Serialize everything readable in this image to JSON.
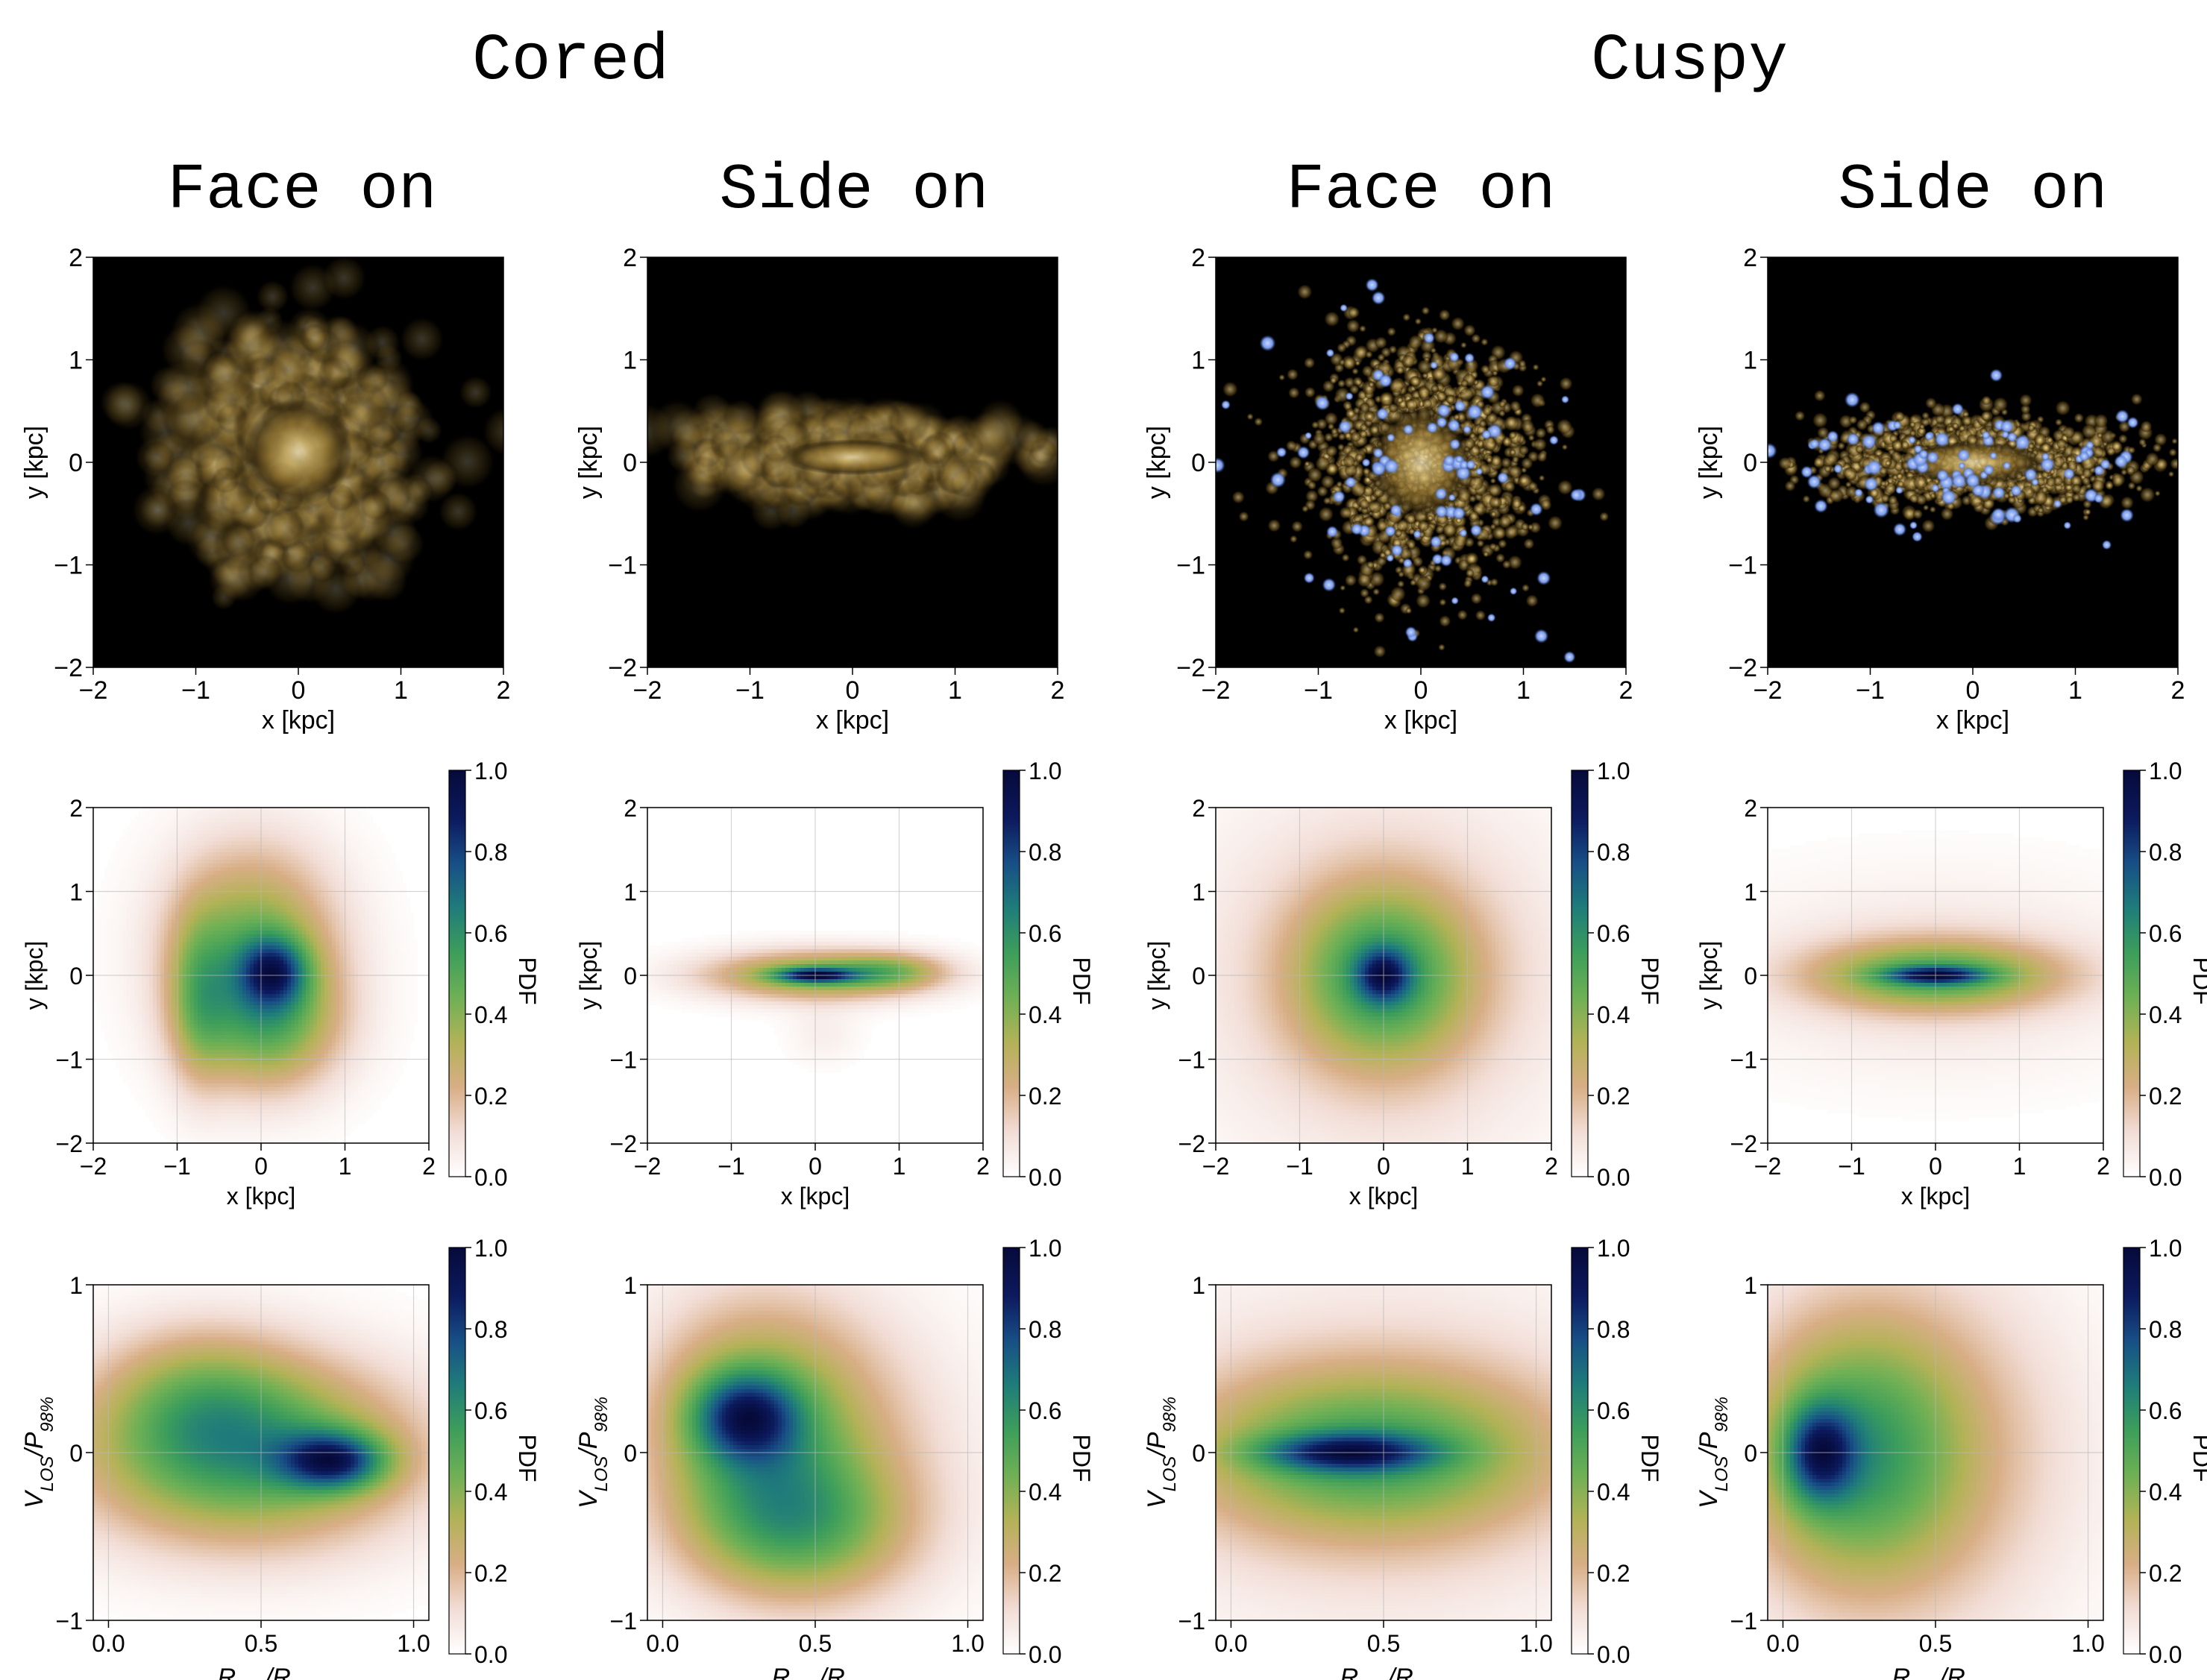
{
  "headers": {
    "cored": "Cored",
    "cuspy": "Cuspy",
    "face_on": "Face on",
    "side_on": "Side on"
  },
  "colors": {
    "pdf_cmap": [
      "#ffffff",
      "#f2ddd6",
      "#d8ae86",
      "#b3b257",
      "#6fb055",
      "#3d9e5b",
      "#1f7d7a",
      "#184f86",
      "#0c1a5e",
      "#060a3a"
    ],
    "blue_cluster": "#7a9be8",
    "star_core": "#fff2c8",
    "star_mid": "#b08c3c",
    "star_edge": "#3a2c10"
  },
  "chart_data": [
    {
      "type": "heatmap",
      "kind": "image",
      "column": "cored-face-on",
      "xlabel": "x [kpc]",
      "ylabel": "y [kpc]",
      "xlim": [
        -2,
        2
      ],
      "ylim": [
        -2,
        2
      ],
      "xticks": [
        "−2",
        "−1",
        "0",
        "1",
        "2"
      ],
      "yticks": [
        "−2",
        "−1",
        "0",
        "1",
        "2"
      ],
      "blobs": [
        {
          "x": 0,
          "y": 0.1,
          "sx": 0.95,
          "sy": 0.95,
          "w": 1
        }
      ],
      "blue": false
    },
    {
      "type": "heatmap",
      "kind": "image",
      "column": "cored-side-on",
      "xlabel": "x [kpc]",
      "ylabel": "y [kpc]",
      "xlim": [
        -2,
        2
      ],
      "ylim": [
        -2,
        2
      ],
      "xticks": [
        "−2",
        "−1",
        "0",
        "1",
        "2"
      ],
      "yticks": [
        "−2",
        "−1",
        "0",
        "1",
        "2"
      ],
      "blobs": [
        {
          "x": 0,
          "y": 0.05,
          "sx": 1.25,
          "sy": 0.32,
          "w": 1
        }
      ],
      "blue": false
    },
    {
      "type": "heatmap",
      "kind": "image",
      "column": "cuspy-face-on",
      "xlabel": "x [kpc]",
      "ylabel": "y [kpc]",
      "xlim": [
        -2,
        2
      ],
      "ylim": [
        -2,
        2
      ],
      "xticks": [
        "−2",
        "−1",
        "0",
        "1",
        "2"
      ],
      "yticks": [
        "−2",
        "−1",
        "0",
        "1",
        "2"
      ],
      "blobs": [
        {
          "x": 0,
          "y": 0,
          "sx": 0.95,
          "sy": 1.0,
          "w": 1
        }
      ],
      "blue": true
    },
    {
      "type": "heatmap",
      "kind": "image",
      "column": "cuspy-side-on",
      "xlabel": "x [kpc]",
      "ylabel": "y [kpc]",
      "xlim": [
        -2,
        2
      ],
      "ylim": [
        -2,
        2
      ],
      "xticks": [
        "−2",
        "−1",
        "0",
        "1",
        "2"
      ],
      "yticks": [
        "−2",
        "−1",
        "0",
        "1",
        "2"
      ],
      "blobs": [
        {
          "x": 0,
          "y": 0,
          "sx": 1.3,
          "sy": 0.38,
          "w": 1
        }
      ],
      "blue": true
    },
    {
      "type": "heatmap",
      "kind": "pdf",
      "column": "cored-face-on",
      "xlabel": "x [kpc]",
      "ylabel": "y [kpc]",
      "cbar_label": "PDF",
      "cbar_ticks": [
        "0.0",
        "0.2",
        "0.4",
        "0.6",
        "0.8",
        "1.0"
      ],
      "xlim": [
        -2,
        2
      ],
      "ylim": [
        -2,
        2
      ],
      "xticks": [
        "−2",
        "−1",
        "0",
        "1",
        "2"
      ],
      "yticks": [
        "−2",
        "−1",
        "0",
        "1",
        "2"
      ],
      "blobs": [
        {
          "x": 0.15,
          "y": 0.05,
          "sx": 0.28,
          "sy": 0.28,
          "w": 0.55
        },
        {
          "x": -0.1,
          "y": 0.3,
          "sx": 0.7,
          "sy": 0.85,
          "w": 0.55
        },
        {
          "x": 0.1,
          "y": -0.6,
          "sx": 0.6,
          "sy": 0.55,
          "w": 0.4
        },
        {
          "x": -0.75,
          "y": -0.3,
          "sx": 0.25,
          "sy": 0.7,
          "w": 0.3
        }
      ]
    },
    {
      "type": "heatmap",
      "kind": "pdf",
      "column": "cored-side-on",
      "xlabel": "x [kpc]",
      "ylabel": "y [kpc]",
      "cbar_label": "PDF",
      "cbar_ticks": [
        "0.0",
        "0.2",
        "0.4",
        "0.6",
        "0.8",
        "1.0"
      ],
      "xlim": [
        -2,
        2
      ],
      "ylim": [
        -2,
        2
      ],
      "xticks": [
        "−2",
        "−1",
        "0",
        "1",
        "2"
      ],
      "yticks": [
        "−2",
        "−1",
        "0",
        "1",
        "2"
      ],
      "blobs": [
        {
          "x": 0,
          "y": 0,
          "sx": 0.32,
          "sy": 0.06,
          "w": 0.6
        },
        {
          "x": 0,
          "y": 0,
          "sx": 0.9,
          "sy": 0.2,
          "w": 0.5
        },
        {
          "x": 0.9,
          "y": 0.05,
          "sx": 0.45,
          "sy": 0.15,
          "w": 0.25
        },
        {
          "x": 0.1,
          "y": -0.7,
          "sx": 0.3,
          "sy": 0.25,
          "w": 0.06
        }
      ]
    },
    {
      "type": "heatmap",
      "kind": "pdf",
      "column": "cuspy-face-on",
      "xlabel": "x [kpc]",
      "ylabel": "y [kpc]",
      "cbar_label": "PDF",
      "cbar_ticks": [
        "0.0",
        "0.2",
        "0.4",
        "0.6",
        "0.8",
        "1.0"
      ],
      "xlim": [
        -2,
        2
      ],
      "ylim": [
        -2,
        2
      ],
      "xticks": [
        "−2",
        "−1",
        "0",
        "1",
        "2"
      ],
      "yticks": [
        "−2",
        "−1",
        "0",
        "1",
        "2"
      ],
      "blobs": [
        {
          "x": 0,
          "y": 0,
          "sx": 0.22,
          "sy": 0.22,
          "w": 0.5
        },
        {
          "x": 0,
          "y": 0,
          "sx": 0.75,
          "sy": 0.75,
          "w": 0.6
        },
        {
          "x": 0,
          "y": 0,
          "sx": 1.6,
          "sy": 1.6,
          "w": 0.18
        }
      ]
    },
    {
      "type": "heatmap",
      "kind": "pdf",
      "column": "cuspy-side-on",
      "xlabel": "x [kpc]",
      "ylabel": "y [kpc]",
      "cbar_label": "PDF",
      "cbar_ticks": [
        "0.0",
        "0.2",
        "0.4",
        "0.6",
        "0.8",
        "1.0"
      ],
      "xlim": [
        -2,
        2
      ],
      "ylim": [
        -2,
        2
      ],
      "xticks": [
        "−2",
        "−1",
        "0",
        "1",
        "2"
      ],
      "yticks": [
        "−2",
        "−1",
        "0",
        "1",
        "2"
      ],
      "blobs": [
        {
          "x": 0,
          "y": 0,
          "sx": 0.4,
          "sy": 0.07,
          "w": 0.55
        },
        {
          "x": 0,
          "y": 0,
          "sx": 1.0,
          "sy": 0.28,
          "w": 0.55
        },
        {
          "x": 0,
          "y": 0,
          "sx": 1.8,
          "sy": 0.8,
          "w": 0.12
        }
      ]
    },
    {
      "type": "heatmap",
      "kind": "pdf",
      "column": "cored-face-on",
      "xlabel": "R_proj/R_hl",
      "ylabel": "V_LOS/P_98%",
      "cbar_label": "PDF",
      "cbar_ticks": [
        "0.0",
        "0.2",
        "0.4",
        "0.6",
        "0.8",
        "1.0"
      ],
      "xlim": [
        -0.05,
        1.05
      ],
      "ylim": [
        -1,
        1
      ],
      "xticks": [
        "0.0",
        "0.5",
        "1.0"
      ],
      "yticks": [
        "−1",
        "0",
        "1"
      ],
      "blobs": [
        {
          "x": 0.74,
          "y": -0.05,
          "sx": 0.12,
          "sy": 0.12,
          "w": 0.55
        },
        {
          "x": 0.45,
          "y": 0.0,
          "sx": 0.38,
          "sy": 0.38,
          "w": 0.55
        },
        {
          "x": 0.3,
          "y": 0.35,
          "sx": 0.22,
          "sy": 0.3,
          "w": 0.2
        }
      ]
    },
    {
      "type": "heatmap",
      "kind": "pdf",
      "column": "cored-side-on",
      "xlabel": "R_proj/R_hl",
      "ylabel": "V_LOS/P_98%",
      "cbar_label": "PDF",
      "cbar_ticks": [
        "0.0",
        "0.2",
        "0.4",
        "0.6",
        "0.8",
        "1.0"
      ],
      "xlim": [
        -0.05,
        1.05
      ],
      "ylim": [
        -1,
        1
      ],
      "xticks": [
        "0.0",
        "0.5",
        "1.0"
      ],
      "yticks": [
        "−1",
        "0",
        "1"
      ],
      "blobs": [
        {
          "x": 0.27,
          "y": 0.22,
          "sx": 0.12,
          "sy": 0.18,
          "w": 0.55
        },
        {
          "x": 0.3,
          "y": 0.15,
          "sx": 0.25,
          "sy": 0.5,
          "w": 0.5
        },
        {
          "x": 0.45,
          "y": -0.45,
          "sx": 0.25,
          "sy": 0.3,
          "w": 0.4
        },
        {
          "x": 0.6,
          "y": 0.0,
          "sx": 0.3,
          "sy": 0.6,
          "w": 0.15
        }
      ]
    },
    {
      "type": "heatmap",
      "kind": "pdf",
      "column": "cuspy-face-on",
      "xlabel": "R_proj/R_hl",
      "ylabel": "V_LOS/P_98%",
      "cbar_label": "PDF",
      "cbar_ticks": [
        "0.0",
        "0.2",
        "0.4",
        "0.6",
        "0.8",
        "1.0"
      ],
      "xlim": [
        -0.05,
        1.05
      ],
      "ylim": [
        -1,
        1
      ],
      "xticks": [
        "0.0",
        "0.5",
        "1.0"
      ],
      "yticks": [
        "−1",
        "0",
        "1"
      ],
      "blobs": [
        {
          "x": 0.38,
          "y": 0.0,
          "sx": 0.2,
          "sy": 0.08,
          "w": 0.55
        },
        {
          "x": 0.45,
          "y": 0.0,
          "sx": 0.42,
          "sy": 0.35,
          "w": 0.55
        },
        {
          "x": 0.5,
          "y": 0.0,
          "sx": 0.6,
          "sy": 0.8,
          "w": 0.15
        }
      ]
    },
    {
      "type": "heatmap",
      "kind": "pdf",
      "column": "cuspy-side-on",
      "xlabel": "R_proj/R_hl",
      "ylabel": "V_LOS/P_98%",
      "cbar_label": "PDF",
      "cbar_ticks": [
        "0.0",
        "0.2",
        "0.4",
        "0.6",
        "0.8",
        "1.0"
      ],
      "xlim": [
        -0.05,
        1.05
      ],
      "ylim": [
        -1,
        1
      ],
      "xticks": [
        "0.0",
        "0.5",
        "1.0"
      ],
      "yticks": [
        "−1",
        "0",
        "1"
      ],
      "blobs": [
        {
          "x": 0.12,
          "y": 0.0,
          "sx": 0.08,
          "sy": 0.2,
          "w": 0.55
        },
        {
          "x": 0.22,
          "y": 0.0,
          "sx": 0.25,
          "sy": 0.55,
          "w": 0.5
        },
        {
          "x": 0.45,
          "y": 0.0,
          "sx": 0.35,
          "sy": 0.75,
          "w": 0.25
        }
      ]
    }
  ]
}
